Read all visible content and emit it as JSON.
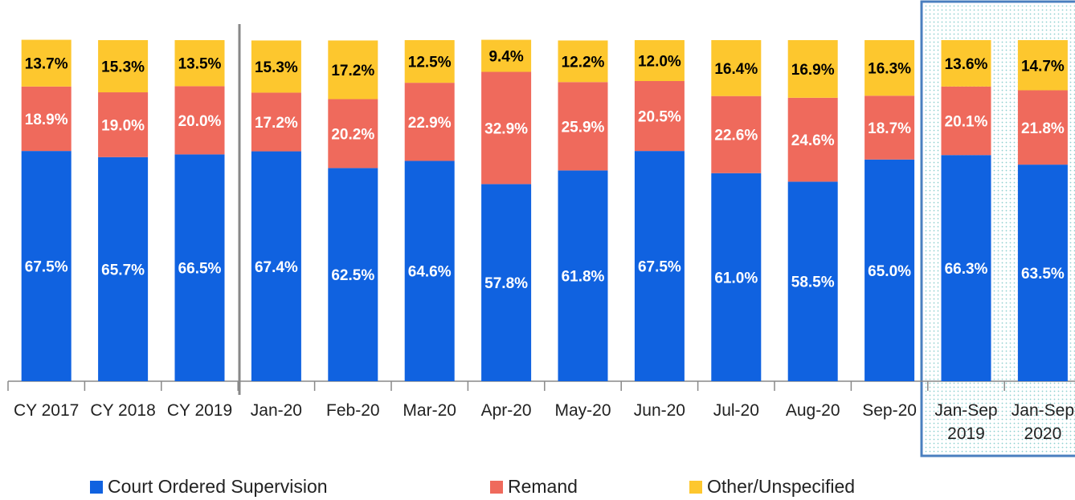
{
  "chart_data": {
    "type": "stacked_bar",
    "categories": [
      "CY 2017",
      "CY 2018",
      "CY 2019",
      "Jan-20",
      "Feb-20",
      "Mar-20",
      "Apr-20",
      "May-20",
      "Jun-20",
      "Jul-20",
      "Aug-20",
      "Sep-20",
      "Jan-Sep 2019",
      "Jan-Sep 2020"
    ],
    "ylim": [
      0,
      100
    ],
    "legend": "bottom",
    "series": [
      {
        "name": "Court Ordered Supervision",
        "color": "#1062e0",
        "values": [
          67.5,
          65.7,
          66.5,
          67.4,
          62.5,
          64.6,
          57.8,
          61.8,
          67.5,
          61.0,
          58.5,
          65.0,
          66.3,
          63.5
        ],
        "value_labels": [
          "67.5%",
          "65.7%",
          "66.5%",
          "67.4%",
          "62.5%",
          "64.6%",
          "57.8%",
          "61.8%",
          "67.5%",
          "61.0%",
          "58.5%",
          "65.0%",
          "66.3%",
          "63.5%"
        ]
      },
      {
        "name": "Remand",
        "color": "#ef6a5c",
        "values": [
          18.9,
          19.0,
          20.0,
          17.2,
          20.2,
          22.9,
          32.9,
          25.9,
          20.5,
          22.6,
          24.6,
          18.7,
          20.1,
          21.8
        ],
        "value_labels": [
          "18.9%",
          "19.0%",
          "20.0%",
          "17.2%",
          "20.2%",
          "22.9%",
          "32.9%",
          "25.9%",
          "20.5%",
          "22.6%",
          "24.6%",
          "18.7%",
          "20.1%",
          "21.8%"
        ]
      },
      {
        "name": "Other/Unspecified",
        "color": "#fdc72e",
        "values": [
          13.7,
          15.3,
          13.5,
          15.3,
          17.2,
          12.5,
          9.4,
          12.2,
          12.0,
          16.4,
          16.9,
          16.3,
          13.6,
          14.7
        ],
        "value_labels": [
          "13.7%",
          "15.3%",
          "13.5%",
          "15.3%",
          "17.2%",
          "12.5%",
          "9.4%",
          "12.2%",
          "12.0%",
          "16.4%",
          "16.9%",
          "16.3%",
          "13.6%",
          "14.7%"
        ]
      }
    ]
  }
}
